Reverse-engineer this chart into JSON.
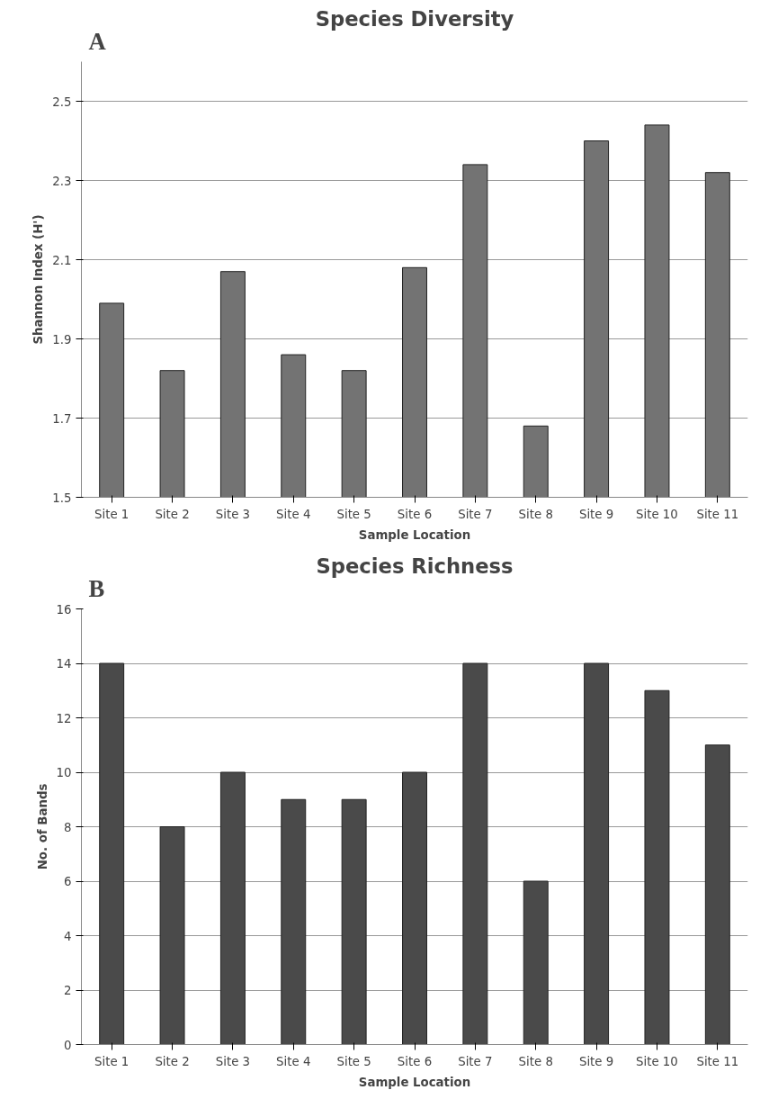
{
  "chart_data": [
    {
      "type": "bar",
      "title": "Species Diversity",
      "xlabel": "Sample Location",
      "ylabel": "Shannon Index (H')",
      "annotations": [
        "A"
      ],
      "categories": [
        "Site 1",
        "Site 2",
        "Site 3",
        "Site 4",
        "Site 5",
        "Site 6",
        "Site 7",
        "Site 8",
        "Site 9",
        "Site 10",
        "Site 11"
      ],
      "values": [
        1.99,
        1.82,
        2.07,
        1.86,
        1.82,
        2.08,
        2.34,
        1.68,
        2.4,
        2.44,
        2.32
      ],
      "color": "#737373",
      "ylim": [
        1.5,
        2.6
      ],
      "yticks": [
        1.5,
        1.7,
        1.9,
        2.1,
        2.3,
        2.5
      ],
      "grid": "y"
    },
    {
      "type": "bar",
      "title": "Species Richness",
      "xlabel": "Sample Location",
      "ylabel": "No. of Bands",
      "annotations": [
        "B"
      ],
      "categories": [
        "Site 1",
        "Site 2",
        "Site 3",
        "Site 4",
        "Site 5",
        "Site 6",
        "Site 7",
        "Site 8",
        "Site 9",
        "Site 10",
        "Site 11"
      ],
      "values": [
        14,
        8,
        10,
        9,
        9,
        10,
        14,
        6,
        14,
        13,
        11
      ],
      "color": "#4a4a4a",
      "ylim": [
        0,
        16
      ],
      "yticks": [
        0,
        2,
        4,
        6,
        8,
        10,
        12,
        14,
        16
      ],
      "grid": "y"
    }
  ]
}
